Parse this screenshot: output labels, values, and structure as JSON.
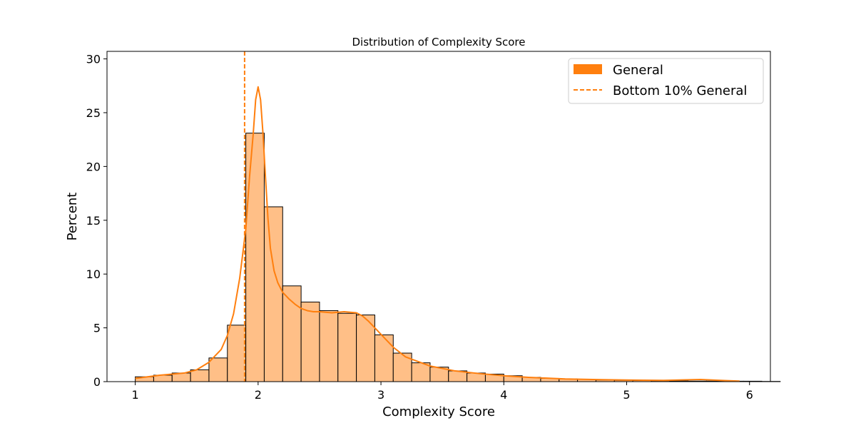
{
  "chart_data": {
    "type": "bar",
    "subtype": "histogram",
    "title": "Distribution of Complexity Score",
    "xlabel": "Complexity Score",
    "ylabel": "Percent",
    "xlim": [
      0.77,
      6.17
    ],
    "ylim": [
      0,
      30.7
    ],
    "xticks": [
      1,
      2,
      3,
      4,
      5,
      6
    ],
    "yticks": [
      0,
      5,
      10,
      15,
      20,
      25,
      30
    ],
    "grid": false,
    "legend_position": "top-right",
    "bin_start": 1.0,
    "bin_width": 0.15,
    "values": [
      0.45,
      0.6,
      0.8,
      1.1,
      2.2,
      5.25,
      23.1,
      16.25,
      8.9,
      7.4,
      6.6,
      6.35,
      6.2,
      4.35,
      2.65,
      1.75,
      1.35,
      1.0,
      0.8,
      0.7,
      0.55,
      0.4,
      0.3,
      0.25,
      0.2,
      0.15,
      0.12,
      0.1,
      0.08,
      0.06,
      0.05,
      0.05,
      0.04,
      0.04,
      0.02
    ],
    "kde": {
      "x": [
        1.0,
        1.2,
        1.4,
        1.5,
        1.6,
        1.7,
        1.75,
        1.8,
        1.85,
        1.9,
        1.93,
        1.96,
        1.98,
        2.0,
        2.02,
        2.04,
        2.06,
        2.08,
        2.1,
        2.13,
        2.16,
        2.2,
        2.25,
        2.3,
        2.35,
        2.4,
        2.45,
        2.5,
        2.6,
        2.7,
        2.8,
        2.85,
        2.9,
        2.95,
        3.0,
        3.1,
        3.2,
        3.4,
        3.6,
        3.8,
        4.0,
        4.2,
        4.5,
        4.8,
        5.0,
        5.3,
        5.6,
        5.8,
        5.92
      ],
      "y": [
        0.3,
        0.6,
        0.8,
        1.1,
        1.8,
        3.0,
        4.3,
        6.3,
        9.6,
        14.2,
        19.0,
        23.0,
        26.2,
        27.4,
        26.2,
        23.0,
        19.0,
        15.2,
        12.4,
        10.3,
        9.2,
        8.3,
        7.7,
        7.2,
        6.8,
        6.6,
        6.5,
        6.5,
        6.4,
        6.5,
        6.4,
        6.1,
        5.6,
        5.0,
        4.4,
        3.2,
        2.3,
        1.45,
        1.0,
        0.75,
        0.55,
        0.4,
        0.25,
        0.18,
        0.15,
        0.12,
        0.2,
        0.1,
        0.05
      ]
    },
    "reference_line": {
      "label": "Bottom 10% General",
      "x": 1.89,
      "style": "dashed"
    },
    "series": [
      {
        "name": "General",
        "color": "#ff7f0e",
        "fill": "#ffbf87"
      }
    ],
    "legend": [
      {
        "label": "General",
        "kind": "patch"
      },
      {
        "label": "Bottom 10% General",
        "kind": "dashed-line"
      }
    ]
  }
}
